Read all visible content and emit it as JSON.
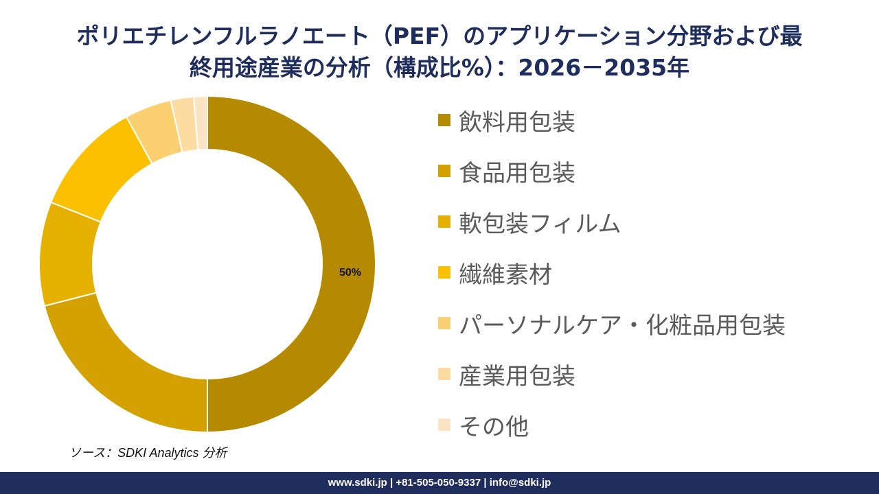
{
  "title": {
    "line1": "ポリエチレンフルラノエート（PEF）のアプリケーション分野および最",
    "line2": "終用途産業の分析（構成比%）：2026－2035年"
  },
  "chart_data": {
    "type": "donut",
    "slice_label": "50%",
    "series": [
      {
        "name": "飲料用包装",
        "value": 50,
        "color": "#b58a00"
      },
      {
        "name": "食品用包装",
        "value": 21,
        "color": "#d4a200"
      },
      {
        "name": "軟包装フィルム",
        "value": 10,
        "color": "#e6b000"
      },
      {
        "name": "繊維素材",
        "value": 11,
        "color": "#fbc000"
      },
      {
        "name": "パーソナルケア・化粧品用包装",
        "value": 4.5,
        "color": "#fbd070"
      },
      {
        "name": "産業用包装",
        "value": 2.2,
        "color": "#fcdca0"
      },
      {
        "name": "その他",
        "value": 1.3,
        "color": "#fbe4c4"
      }
    ]
  },
  "source": "ソース：SDKI Analytics 分析",
  "footer": "www.sdki.jp | +81-505-050-9337 | info@sdki.jp"
}
